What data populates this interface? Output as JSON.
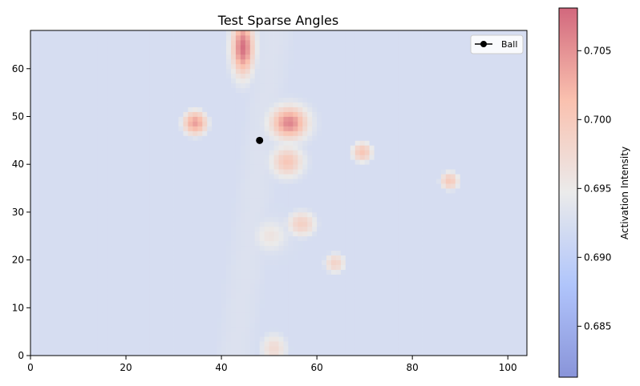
{
  "chart_data": {
    "type": "heatmap",
    "title": "Test Sparse Angles",
    "xlabel": "",
    "ylabel": "",
    "xlim": [
      0,
      104
    ],
    "ylim": [
      0,
      68
    ],
    "xticks": [
      0,
      20,
      40,
      60,
      80,
      100
    ],
    "yticks": [
      0,
      10,
      20,
      30,
      40,
      50,
      60
    ],
    "grid": false,
    "colormap": "coolwarm",
    "alpha": 0.6,
    "colorbar": {
      "label": "Activation Intensity",
      "range": [
        0.6813,
        0.7081
      ],
      "ticks": [
        0.685,
        0.69,
        0.695,
        0.7,
        0.705
      ],
      "tick_labels": [
        "0.685",
        "0.690",
        "0.695",
        "0.700",
        "0.705"
      ]
    },
    "background": {
      "ridge_x0": 47,
      "ridge_slope": 0.12,
      "ridge_width": 17,
      "base_value": 0.6825,
      "ridge_amplitude": 0.0105
    },
    "hotspots": [
      {
        "x": 44.5,
        "y": 64.5,
        "sx": 1.6,
        "sy": 4.0,
        "peak": 0.7075
      },
      {
        "x": 34.5,
        "y": 48.7,
        "sx": 2.2,
        "sy": 2.2,
        "peak": 0.704
      },
      {
        "x": 54.2,
        "y": 48.7,
        "sx": 2.6,
        "sy": 2.3,
        "peak": 0.706
      },
      {
        "x": 53.8,
        "y": 40.6,
        "sx": 2.3,
        "sy": 2.2,
        "peak": 0.7005
      },
      {
        "x": 69.5,
        "y": 42.6,
        "sx": 2.3,
        "sy": 2.2,
        "peak": 0.7005
      },
      {
        "x": 87.8,
        "y": 36.6,
        "sx": 2.3,
        "sy": 2.2,
        "peak": 0.7
      },
      {
        "x": 56.8,
        "y": 27.6,
        "sx": 2.5,
        "sy": 2.2,
        "peak": 0.699
      },
      {
        "x": 50.3,
        "y": 25.1,
        "sx": 2.1,
        "sy": 2.0,
        "peak": 0.696
      },
      {
        "x": 63.8,
        "y": 19.4,
        "sx": 2.3,
        "sy": 2.2,
        "peak": 0.6985
      },
      {
        "x": 51.0,
        "y": 1.5,
        "sx": 2.0,
        "sy": 2.3,
        "peak": 0.6975
      }
    ],
    "series": [
      {
        "name": "Ball",
        "x": [
          48
        ],
        "y": [
          45
        ],
        "marker": "o",
        "color": "#000000"
      }
    ],
    "legend": {
      "placement": "top-right",
      "entries": [
        "Ball"
      ]
    }
  }
}
